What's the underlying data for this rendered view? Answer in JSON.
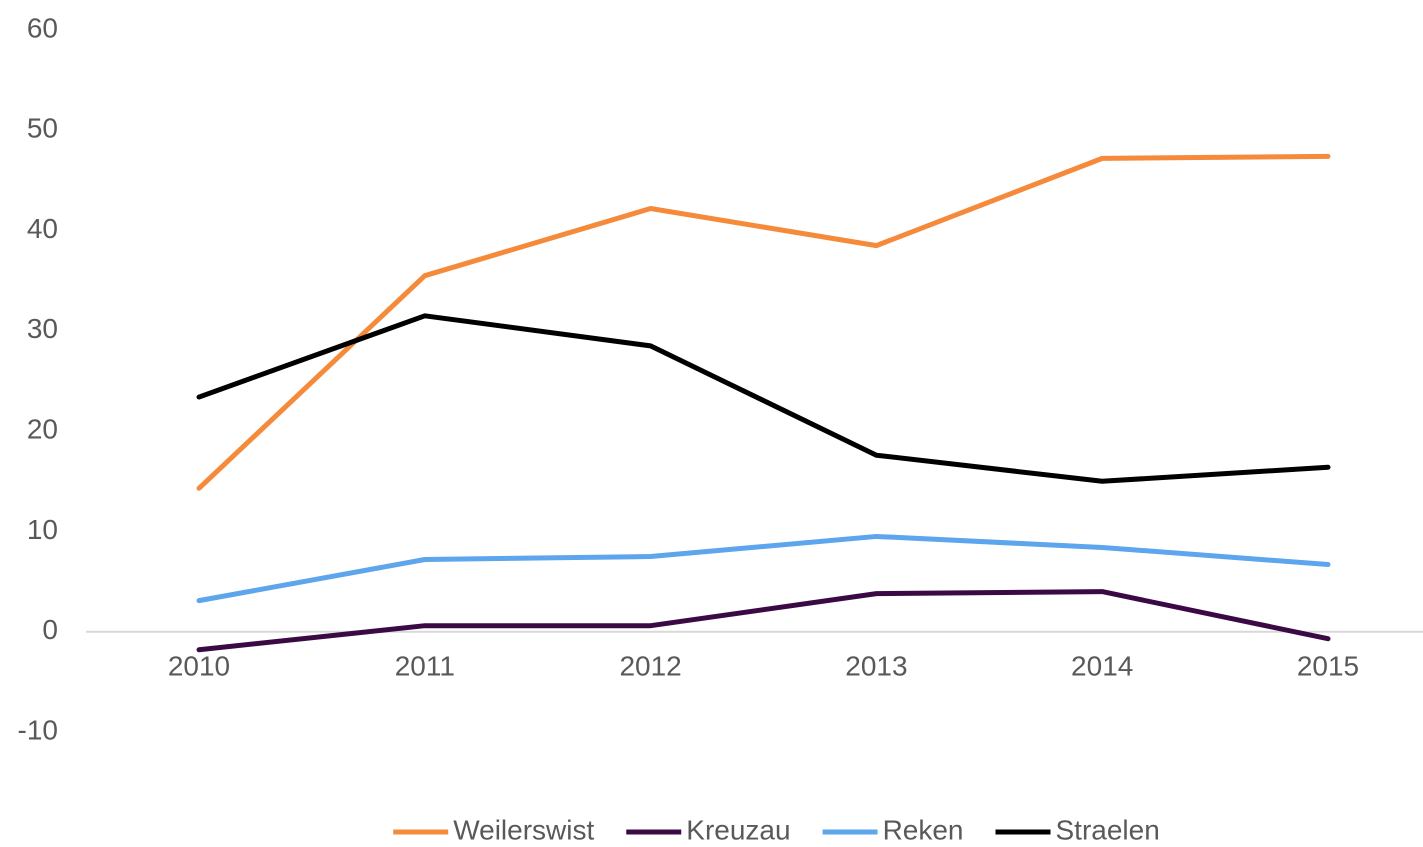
{
  "chart_data": {
    "type": "line",
    "categories": [
      "2010",
      "2011",
      "2012",
      "2013",
      "2014",
      "2015"
    ],
    "series": [
      {
        "name": "Weilerswist",
        "color": "#f58a3a",
        "values": [
          14.3,
          35.5,
          42.2,
          38.5,
          47.2,
          47.4
        ]
      },
      {
        "name": "Kreuzau",
        "color": "#3b0a45",
        "values": [
          -1.8,
          0.6,
          0.6,
          3.8,
          4.0,
          -0.7
        ]
      },
      {
        "name": "Reken",
        "color": "#5da5ec",
        "values": [
          3.1,
          7.2,
          7.5,
          9.5,
          8.4,
          6.7
        ]
      },
      {
        "name": "Straelen",
        "color": "#000000",
        "values": [
          23.4,
          31.5,
          28.5,
          17.6,
          15.0,
          16.4
        ]
      }
    ],
    "ylim": [
      -10,
      60
    ],
    "yticks": [
      -10,
      0,
      10,
      20,
      30,
      40,
      50,
      60
    ],
    "grid": false,
    "legend": "bottom"
  }
}
